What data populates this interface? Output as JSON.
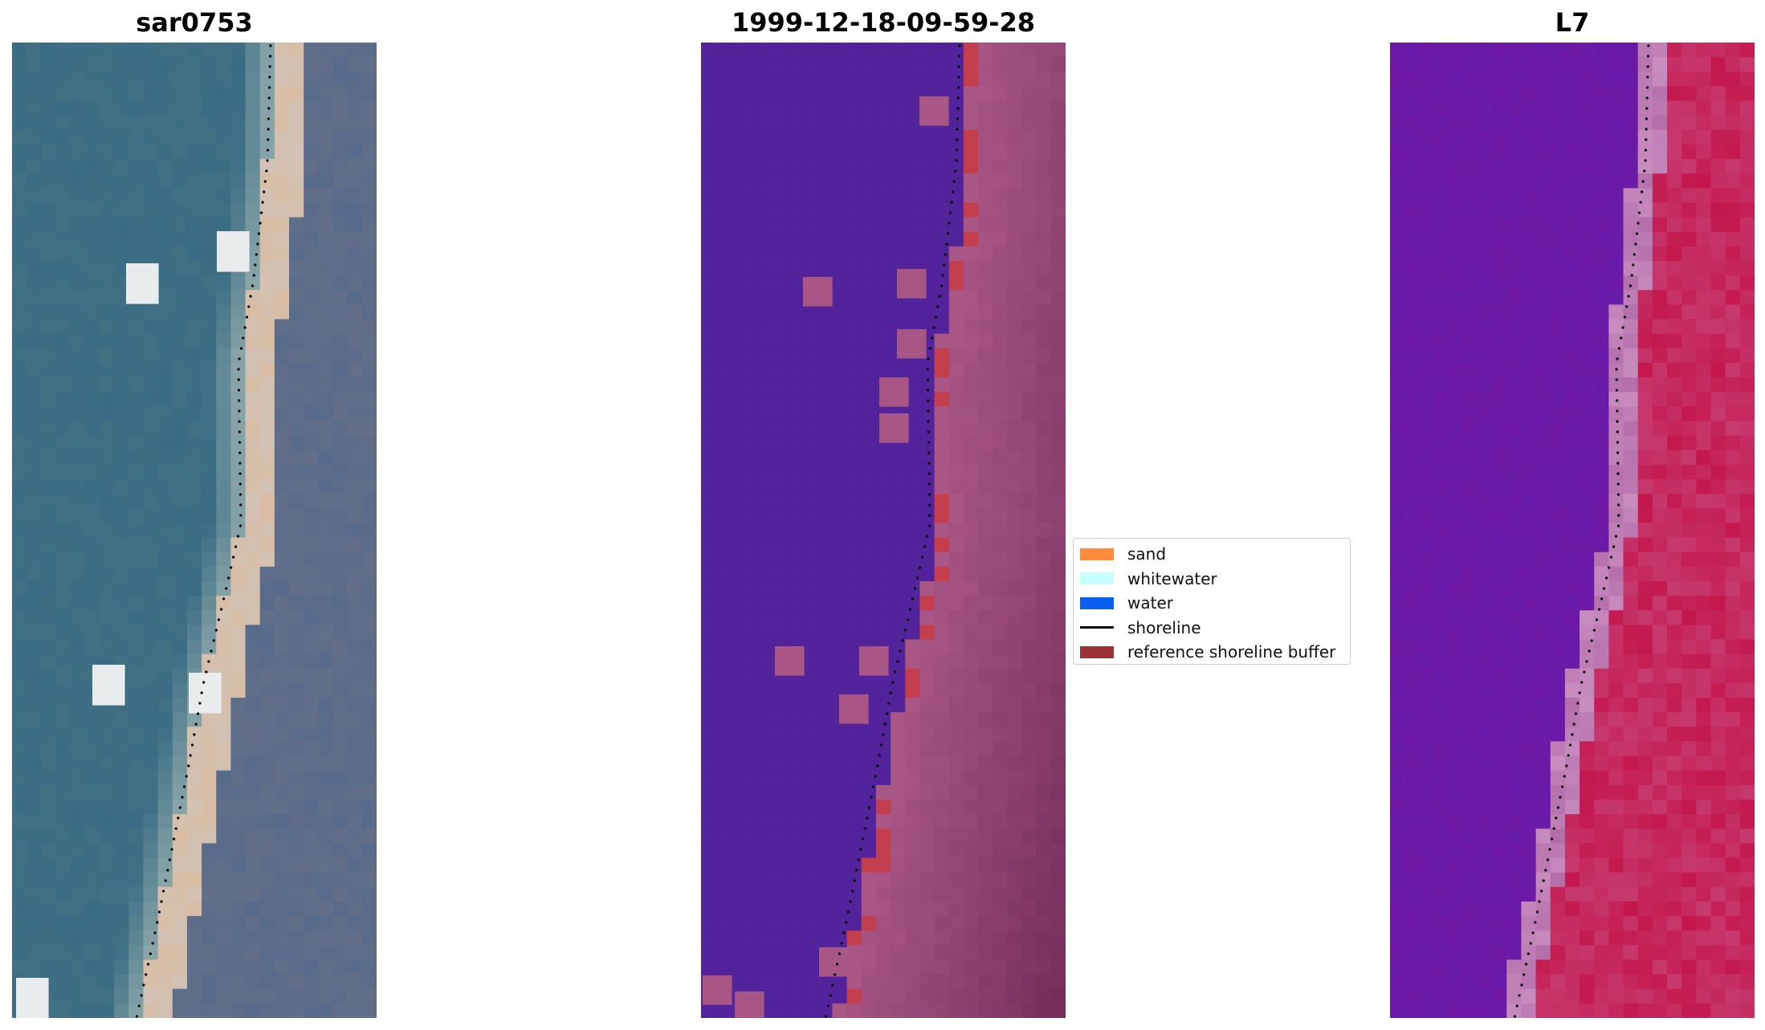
{
  "titles": {
    "left": "sar0753",
    "middle": "1999-12-18-09-59-28",
    "right": "L7"
  },
  "legend": [
    {
      "label": "sand",
      "color": "#ff8c3c",
      "kind": "patch"
    },
    {
      "label": "whitewater",
      "color": "#c8ffff",
      "kind": "patch"
    },
    {
      "label": "water",
      "color": "#0a5ff0",
      "kind": "patch"
    },
    {
      "label": "shoreline",
      "color": "#000000",
      "kind": "line"
    },
    {
      "label": "reference shoreline buffer",
      "color": "#9b3137",
      "kind": "patch"
    }
  ],
  "colors": {
    "ocean": "#3a6c83",
    "beach": "#d8bda4",
    "land": "#586b8a",
    "class_water": "#52239a",
    "class_land": "#a85685",
    "class_buffer": "#c33f4e",
    "index_water": "#6e18a6",
    "index_land": "#c3184e"
  }
}
